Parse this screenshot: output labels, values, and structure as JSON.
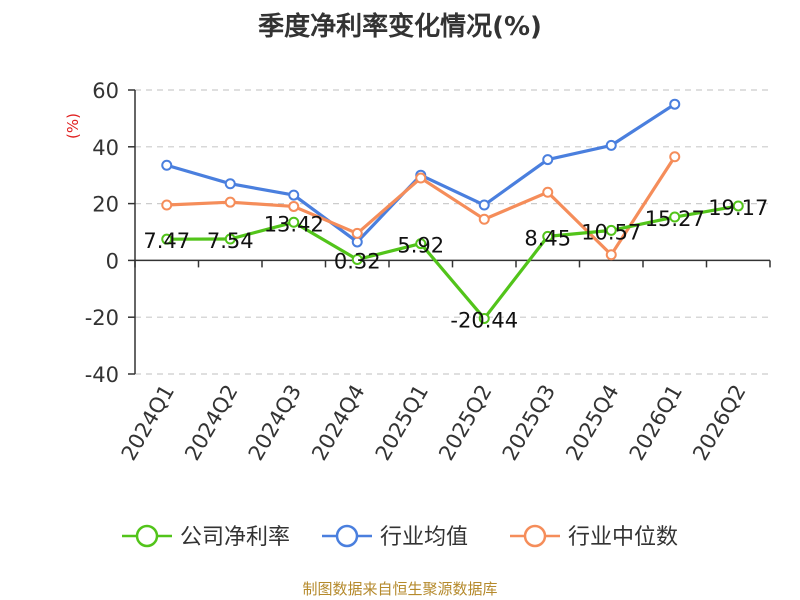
{
  "chart_data": {
    "type": "line",
    "title": "季度净利率变化情况(%)",
    "ylabel": "(%)",
    "categories": [
      "2024Q1",
      "2024Q2",
      "2024Q3",
      "2024Q4",
      "2025Q1",
      "2025Q2",
      "2025Q3",
      "2025Q4",
      "2026Q1",
      "2026Q2"
    ],
    "ylim": [
      -40,
      60
    ],
    "yticks": [
      60,
      40,
      20,
      0,
      -20,
      -40
    ],
    "grid": true,
    "legend_position": "bottom",
    "series": [
      {
        "name": "公司净利率",
        "color": "#52c41a",
        "values": [
          7.47,
          7.54,
          13.42,
          0.32,
          5.92,
          -20.44,
          8.45,
          10.57,
          15.27,
          19.17
        ],
        "labels": [
          "7.47",
          "7.54",
          "13.42",
          "0.32",
          "5.92",
          "-20.44",
          "8.45",
          "10.57",
          "15.27",
          "19.17"
        ]
      },
      {
        "name": "行业均值",
        "color": "#4a7fde",
        "values": [
          33.5,
          27,
          23,
          6.5,
          30,
          19.5,
          35.5,
          40.5,
          55,
          null
        ]
      },
      {
        "name": "行业中位数",
        "color": "#f58d5a",
        "values": [
          19.5,
          20.5,
          19,
          9.5,
          29,
          14.5,
          24,
          2,
          36.5,
          null
        ]
      }
    ]
  },
  "footer": {
    "source": "制图数据来自恒生聚源数据库"
  }
}
